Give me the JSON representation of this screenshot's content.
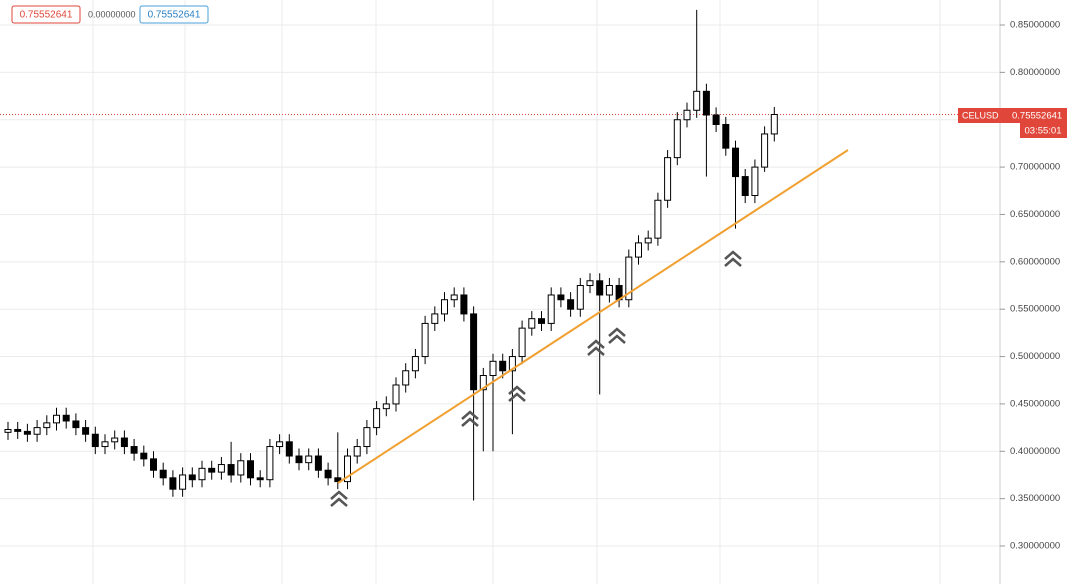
{
  "chart_data": {
    "type": "candlestick",
    "symbol": "CELUSD",
    "last_price": 0.75552641,
    "change": "0.00000000",
    "countdown": "03:55:01",
    "ylim": [
      0.2599,
      0.8764
    ],
    "yticks": [
      {
        "value": 0.3,
        "label": "0.30000000"
      },
      {
        "value": 0.35,
        "label": "0.35000000"
      },
      {
        "value": 0.4,
        "label": "0.40000000"
      },
      {
        "value": 0.45,
        "label": "0.45000000"
      },
      {
        "value": 0.5,
        "label": "0.50000000"
      },
      {
        "value": 0.55,
        "label": "0.55000000"
      },
      {
        "value": 0.6,
        "label": "0.60000000"
      },
      {
        "value": 0.65,
        "label": "0.65000000"
      },
      {
        "value": 0.7,
        "label": "0.70000000"
      },
      {
        "value": 0.75,
        "label": "0.75000000"
      },
      {
        "value": 0.8,
        "label": "0.80000000"
      },
      {
        "value": 0.85,
        "label": "0.85000000"
      }
    ],
    "grid": true,
    "up_color": "#ffffff",
    "down_color": "#000000",
    "color": "#000000",
    "price_color": "#e0473a",
    "open": [
      0.42,
      0.423,
      0.421,
      0.418,
      0.425,
      0.43,
      0.438,
      0.432,
      0.425,
      0.418,
      0.405,
      0.41,
      0.414,
      0.405,
      0.398,
      0.392,
      0.38,
      0.372,
      0.36,
      0.375,
      0.37,
      0.382,
      0.378,
      0.386,
      0.375,
      0.39,
      0.372,
      0.37,
      0.405,
      0.41,
      0.395,
      0.388,
      0.395,
      0.38,
      0.372,
      0.368,
      0.395,
      0.405,
      0.425,
      0.445,
      0.45,
      0.47,
      0.485,
      0.5,
      0.535,
      0.545,
      0.56,
      0.565,
      0.545,
      0.465,
      0.48,
      0.495,
      0.485,
      0.5,
      0.53,
      0.54,
      0.535,
      0.565,
      0.56,
      0.55,
      0.575,
      0.58,
      0.565,
      0.575,
      0.56,
      0.605,
      0.62,
      0.625,
      0.665,
      0.71,
      0.75,
      0.76,
      0.78,
      0.755,
      0.745,
      0.72,
      0.69,
      0.67,
      0.7,
      0.735
    ],
    "high": [
      0.431,
      0.431,
      0.429,
      0.433,
      0.438,
      0.446,
      0.446,
      0.44,
      0.433,
      0.426,
      0.418,
      0.422,
      0.422,
      0.413,
      0.406,
      0.4,
      0.388,
      0.38,
      0.383,
      0.383,
      0.39,
      0.39,
      0.394,
      0.41,
      0.398,
      0.398,
      0.38,
      0.413,
      0.418,
      0.418,
      0.403,
      0.403,
      0.403,
      0.388,
      0.42,
      0.403,
      0.413,
      0.433,
      0.453,
      0.458,
      0.478,
      0.493,
      0.508,
      0.543,
      0.553,
      0.568,
      0.573,
      0.573,
      0.553,
      0.488,
      0.503,
      0.503,
      0.508,
      0.538,
      0.548,
      0.548,
      0.573,
      0.573,
      0.568,
      0.583,
      0.588,
      0.588,
      0.583,
      0.583,
      0.613,
      0.628,
      0.633,
      0.673,
      0.718,
      0.758,
      0.768,
      0.866,
      0.788,
      0.763,
      0.753,
      0.728,
      0.698,
      0.708,
      0.743,
      0.7635
    ],
    "low": [
      0.412,
      0.413,
      0.41,
      0.41,
      0.417,
      0.422,
      0.424,
      0.417,
      0.41,
      0.397,
      0.397,
      0.402,
      0.397,
      0.39,
      0.384,
      0.372,
      0.364,
      0.352,
      0.352,
      0.362,
      0.362,
      0.37,
      0.37,
      0.367,
      0.367,
      0.364,
      0.362,
      0.362,
      0.397,
      0.387,
      0.38,
      0.38,
      0.372,
      0.364,
      0.36,
      0.36,
      0.387,
      0.397,
      0.417,
      0.437,
      0.442,
      0.462,
      0.477,
      0.492,
      0.527,
      0.537,
      0.552,
      0.537,
      0.348,
      0.4,
      0.4,
      0.477,
      0.418,
      0.492,
      0.522,
      0.527,
      0.527,
      0.552,
      0.542,
      0.542,
      0.567,
      0.46,
      0.557,
      0.552,
      0.552,
      0.597,
      0.612,
      0.617,
      0.657,
      0.702,
      0.742,
      0.752,
      0.69,
      0.737,
      0.712,
      0.635,
      0.662,
      0.662,
      0.695,
      0.727
    ],
    "close": [
      0.423,
      0.421,
      0.418,
      0.425,
      0.43,
      0.438,
      0.432,
      0.425,
      0.418,
      0.405,
      0.41,
      0.414,
      0.405,
      0.398,
      0.392,
      0.38,
      0.372,
      0.36,
      0.375,
      0.37,
      0.382,
      0.378,
      0.386,
      0.375,
      0.39,
      0.372,
      0.37,
      0.405,
      0.41,
      0.395,
      0.388,
      0.395,
      0.38,
      0.372,
      0.368,
      0.395,
      0.405,
      0.425,
      0.445,
      0.45,
      0.47,
      0.485,
      0.5,
      0.535,
      0.545,
      0.56,
      0.565,
      0.545,
      0.465,
      0.48,
      0.495,
      0.485,
      0.5,
      0.53,
      0.54,
      0.535,
      0.565,
      0.56,
      0.55,
      0.575,
      0.58,
      0.565,
      0.575,
      0.56,
      0.605,
      0.62,
      0.625,
      0.665,
      0.71,
      0.75,
      0.76,
      0.78,
      0.755,
      0.745,
      0.72,
      0.69,
      0.67,
      0.7,
      0.735,
      0.75552641
    ]
  }
}
